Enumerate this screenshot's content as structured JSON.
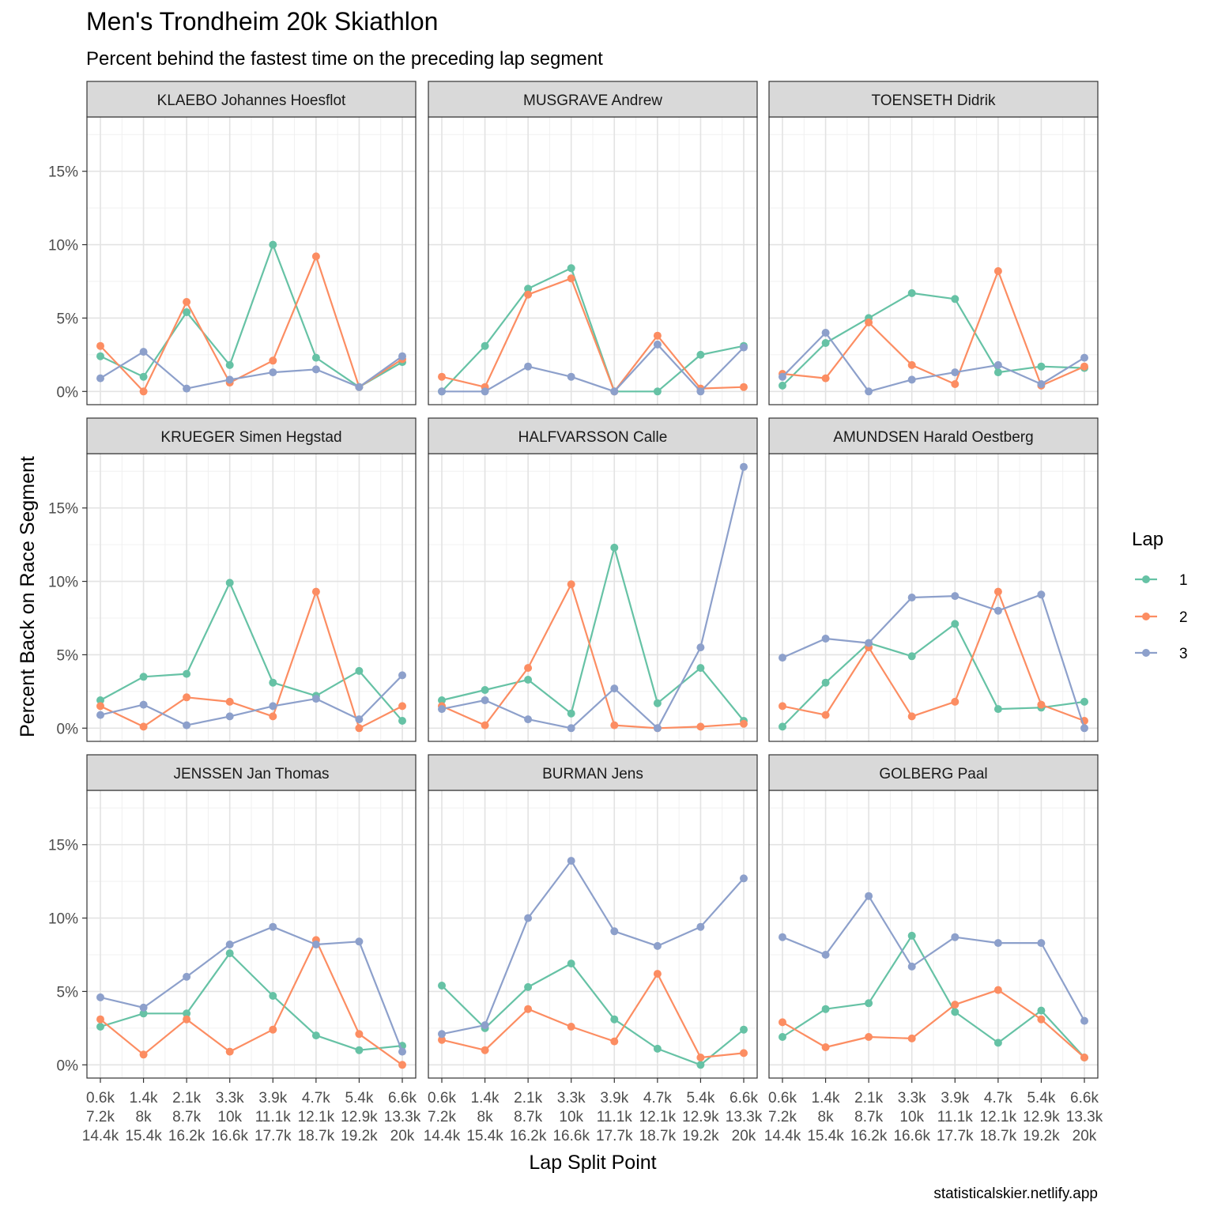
{
  "chart_data": {
    "type": "line",
    "title": "Men's Trondheim 20k  Skiathlon",
    "subtitle": "Percent behind the fastest time on the preceding lap segment",
    "xlabel": "Lap Split Point",
    "ylabel": "Percent Back on Race Segment",
    "caption": "statisticalskier.netlify.app",
    "x_tick_labels": [
      [
        "0.6k",
        "7.2k",
        "14.4k"
      ],
      [
        "1.4k",
        "8k",
        "15.4k"
      ],
      [
        "2.1k",
        "8.7k",
        "16.2k"
      ],
      [
        "3.3k",
        "10k",
        "16.6k"
      ],
      [
        "3.9k",
        "11.1k",
        "17.7k"
      ],
      [
        "4.7k",
        "12.1k",
        "18.7k"
      ],
      [
        "5.4k",
        "12.9k",
        "19.2k"
      ],
      [
        "6.6k",
        "13.3k",
        "20k"
      ]
    ],
    "y_ticks": [
      0,
      5,
      10,
      15
    ],
    "y_tick_labels": [
      "0%",
      "5%",
      "10%",
      "15%"
    ],
    "ylim": [
      -0.9,
      18.7
    ],
    "grid": true,
    "legend": {
      "title": "Lap",
      "position": "right",
      "entries": [
        {
          "label": "1",
          "color": "#66c2a5"
        },
        {
          "label": "2",
          "color": "#fc8d62"
        },
        {
          "label": "3",
          "color": "#8da0cb"
        }
      ]
    },
    "series_colors": [
      "#66c2a5",
      "#fc8d62",
      "#8da0cb"
    ],
    "facets": [
      {
        "name": "KLAEBO Johannes Hoesflot",
        "series": [
          {
            "name": "1",
            "values": [
              2.4,
              1.0,
              5.4,
              1.8,
              10.0,
              2.3,
              0.3,
              2.0
            ]
          },
          {
            "name": "2",
            "values": [
              3.1,
              0.0,
              6.1,
              0.6,
              2.1,
              9.2,
              0.3,
              2.2
            ]
          },
          {
            "name": "3",
            "values": [
              0.9,
              2.7,
              0.2,
              0.8,
              1.3,
              1.5,
              0.3,
              2.4
            ]
          }
        ]
      },
      {
        "name": "MUSGRAVE Andrew",
        "series": [
          {
            "name": "1",
            "values": [
              0.0,
              3.1,
              7.0,
              8.4,
              0.0,
              0.0,
              2.5,
              3.1
            ]
          },
          {
            "name": "2",
            "values": [
              1.0,
              0.3,
              6.6,
              7.7,
              0.0,
              3.8,
              0.2,
              0.3
            ]
          },
          {
            "name": "3",
            "values": [
              0.0,
              0.0,
              1.7,
              1.0,
              0.0,
              3.2,
              0.0,
              3.0
            ]
          }
        ]
      },
      {
        "name": "TOENSETH Didrik",
        "series": [
          {
            "name": "1",
            "values": [
              0.4,
              3.3,
              5.0,
              6.7,
              6.3,
              1.3,
              1.7,
              1.6
            ]
          },
          {
            "name": "2",
            "values": [
              1.2,
              0.9,
              4.7,
              1.8,
              0.5,
              8.2,
              0.4,
              1.7
            ]
          },
          {
            "name": "3",
            "values": [
              1.0,
              4.0,
              0.0,
              0.8,
              1.3,
              1.8,
              0.5,
              2.3
            ]
          }
        ]
      },
      {
        "name": "KRUEGER Simen Hegstad",
        "series": [
          {
            "name": "1",
            "values": [
              1.9,
              3.5,
              3.7,
              9.9,
              3.1,
              2.2,
              3.9,
              0.5
            ]
          },
          {
            "name": "2",
            "values": [
              1.5,
              0.1,
              2.1,
              1.8,
              0.8,
              9.3,
              0.0,
              1.5
            ]
          },
          {
            "name": "3",
            "values": [
              0.9,
              1.6,
              0.2,
              0.8,
              1.5,
              2.0,
              0.6,
              3.6
            ]
          }
        ]
      },
      {
        "name": "HALFVARSSON Calle",
        "series": [
          {
            "name": "1",
            "values": [
              1.9,
              2.6,
              3.3,
              1.0,
              12.3,
              1.7,
              4.1,
              0.5
            ]
          },
          {
            "name": "2",
            "values": [
              1.5,
              0.2,
              4.1,
              9.8,
              0.2,
              0.0,
              0.1,
              0.3
            ]
          },
          {
            "name": "3",
            "values": [
              1.3,
              1.9,
              0.6,
              0.0,
              2.7,
              0.0,
              5.5,
              17.8
            ]
          }
        ]
      },
      {
        "name": "AMUNDSEN Harald Oestberg",
        "series": [
          {
            "name": "1",
            "values": [
              0.1,
              3.1,
              5.8,
              4.9,
              7.1,
              1.3,
              1.4,
              1.8
            ]
          },
          {
            "name": "2",
            "values": [
              1.5,
              0.9,
              5.5,
              0.8,
              1.8,
              9.3,
              1.6,
              0.5
            ]
          },
          {
            "name": "3",
            "values": [
              4.8,
              6.1,
              5.8,
              8.9,
              9.0,
              8.0,
              9.1,
              0.0
            ]
          }
        ]
      },
      {
        "name": "JENSSEN Jan Thomas",
        "series": [
          {
            "name": "1",
            "values": [
              2.6,
              3.5,
              3.5,
              7.6,
              4.7,
              2.0,
              1.0,
              1.3
            ]
          },
          {
            "name": "2",
            "values": [
              3.1,
              0.7,
              3.1,
              0.9,
              2.4,
              8.5,
              2.1,
              0.0
            ]
          },
          {
            "name": "3",
            "values": [
              4.6,
              3.9,
              6.0,
              8.2,
              9.4,
              8.2,
              8.4,
              0.9
            ]
          }
        ]
      },
      {
        "name": "BURMAN Jens",
        "series": [
          {
            "name": "1",
            "values": [
              5.4,
              2.5,
              5.3,
              6.9,
              3.1,
              1.1,
              0.0,
              2.4
            ]
          },
          {
            "name": "2",
            "values": [
              1.7,
              1.0,
              3.8,
              2.6,
              1.6,
              6.2,
              0.5,
              0.8
            ]
          },
          {
            "name": "3",
            "values": [
              2.1,
              2.7,
              10.0,
              13.9,
              9.1,
              8.1,
              9.4,
              12.7
            ]
          }
        ]
      },
      {
        "name": "GOLBERG Paal",
        "series": [
          {
            "name": "1",
            "values": [
              1.9,
              3.8,
              4.2,
              8.8,
              3.6,
              1.5,
              3.7,
              0.5
            ]
          },
          {
            "name": "2",
            "values": [
              2.9,
              1.2,
              1.9,
              1.8,
              4.1,
              5.1,
              3.1,
              0.5
            ]
          },
          {
            "name": "3",
            "values": [
              8.7,
              7.5,
              11.5,
              6.7,
              8.7,
              8.3,
              8.3,
              3.0
            ]
          }
        ]
      }
    ]
  }
}
